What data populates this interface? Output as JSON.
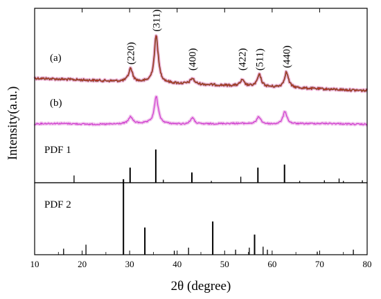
{
  "chart_data": {
    "type": "line",
    "xlabel": "2θ (degree)",
    "ylabel": "Intensity(a.u.)",
    "xlim": [
      10,
      80
    ],
    "x_ticks": [
      10,
      20,
      30,
      40,
      50,
      60,
      70,
      80
    ],
    "grid": false,
    "colors": {
      "a_line": "#c62828",
      "a_noise": "#2e7d32",
      "a_halo": "#f4b0d8",
      "b_line": "#cc33cc",
      "b_halo": "#f0c0ec",
      "sticks": "#000000"
    },
    "series": [
      {
        "name": "(a)",
        "peaks": [
          {
            "x": 30.2,
            "label": "(220)",
            "height": 0.28
          },
          {
            "x": 35.6,
            "label": "(311)",
            "height": 1.0
          },
          {
            "x": 43.2,
            "label": "(400)",
            "height": 0.12
          },
          {
            "x": 53.7,
            "label": "(422)",
            "height": 0.12
          },
          {
            "x": 57.3,
            "label": "(511)",
            "height": 0.25
          },
          {
            "x": 63.0,
            "label": "(440)",
            "height": 0.33
          }
        ]
      },
      {
        "name": "(b)",
        "peaks": [
          {
            "x": 30.2,
            "height": 0.17
          },
          {
            "x": 35.6,
            "height": 0.67
          },
          {
            "x": 43.2,
            "height": 0.16
          },
          {
            "x": 57.2,
            "height": 0.18
          },
          {
            "x": 62.7,
            "height": 0.32
          }
        ]
      }
    ],
    "reference_patterns": [
      {
        "name": "PDF 1",
        "lines": [
          {
            "x": 18.3,
            "intensity": 0.12
          },
          {
            "x": 30.1,
            "intensity": 0.25
          },
          {
            "x": 35.5,
            "intensity": 0.55
          },
          {
            "x": 37.1,
            "intensity": 0.05
          },
          {
            "x": 43.1,
            "intensity": 0.17
          },
          {
            "x": 47.2,
            "intensity": 0.03
          },
          {
            "x": 53.4,
            "intensity": 0.1
          },
          {
            "x": 57.0,
            "intensity": 0.25
          },
          {
            "x": 62.6,
            "intensity": 0.3
          },
          {
            "x": 65.8,
            "intensity": 0.03
          },
          {
            "x": 71.0,
            "intensity": 0.04
          },
          {
            "x": 74.1,
            "intensity": 0.07
          },
          {
            "x": 75.0,
            "intensity": 0.03
          },
          {
            "x": 79.0,
            "intensity": 0.04
          }
        ]
      },
      {
        "name": "PDF 2",
        "lines": [
          {
            "x": 16.1,
            "intensity": 0.06
          },
          {
            "x": 20.8,
            "intensity": 0.1
          },
          {
            "x": 28.7,
            "intensity": 0.75
          },
          {
            "x": 33.2,
            "intensity": 0.27
          },
          {
            "x": 39.4,
            "intensity": 0.04
          },
          {
            "x": 42.4,
            "intensity": 0.07
          },
          {
            "x": 47.5,
            "intensity": 0.33
          },
          {
            "x": 52.3,
            "intensity": 0.05
          },
          {
            "x": 55.2,
            "intensity": 0.07
          },
          {
            "x": 56.3,
            "intensity": 0.2
          },
          {
            "x": 58.1,
            "intensity": 0.08
          },
          {
            "x": 59.0,
            "intensity": 0.05
          },
          {
            "x": 69.5,
            "intensity": 0.03
          },
          {
            "x": 77.1,
            "intensity": 0.05
          }
        ]
      }
    ]
  }
}
